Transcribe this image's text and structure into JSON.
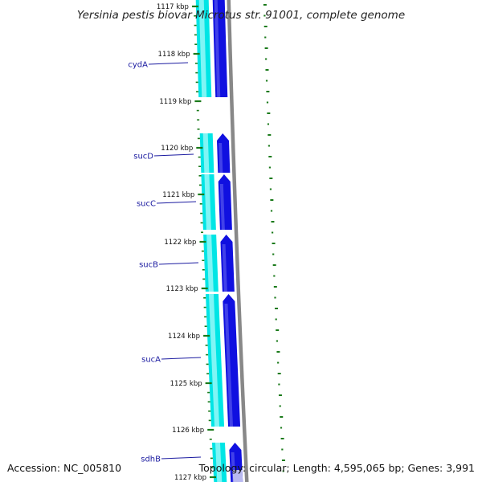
{
  "title": "Yersinia pestis biovar Microtus str. 91001, complete genome",
  "accession": "Accession: NC_005810",
  "topology": "Topology: circular; Length: 4,595,065 bp; Genes: 3,991",
  "ticks": [
    "1117 kbp",
    "1118 kbp",
    "1119 kbp",
    "1120 kbp",
    "1121 kbp",
    "1122 kbp",
    "1123 kbp",
    "1124 kbp",
    "1125 kbp",
    "1126 kbp",
    "1127 kbp"
  ],
  "genes": [
    {
      "name": "cydA"
    },
    {
      "name": "sucD"
    },
    {
      "name": "sucC"
    },
    {
      "name": "sucB"
    },
    {
      "name": "sucA"
    },
    {
      "name": "sdhB"
    }
  ],
  "colors": {
    "background": "#ffffff",
    "forward_feature": "#00e5e5",
    "forward_feature_light": "#7ff5f5",
    "cds": "#1010e0",
    "cds_light": "#6a6af0",
    "backbone": "#888888",
    "tick": "#1a7a1a",
    "gene_label": "#1a1aa0"
  },
  "icons": [
    "cds-arrow-icon"
  ]
}
